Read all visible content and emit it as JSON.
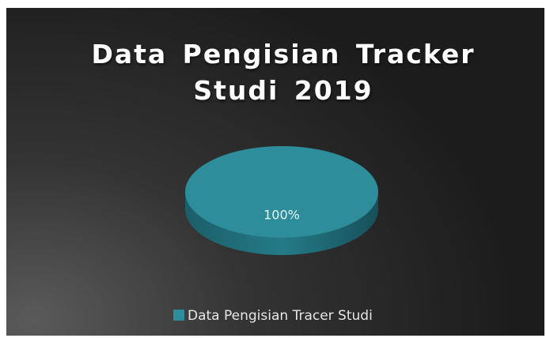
{
  "chart_data": {
    "type": "pie",
    "title": "Data Pengisian Tracker Studi 2019",
    "categories": [
      "Data Pengisian Tracer Studi"
    ],
    "values": [
      100
    ],
    "value_labels": [
      "100%"
    ],
    "colors": [
      "#2e8d9b"
    ],
    "legend": "bottom"
  }
}
